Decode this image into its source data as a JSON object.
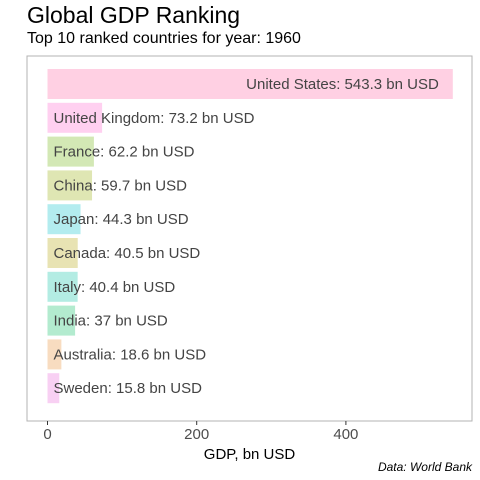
{
  "chart_data": {
    "type": "bar",
    "orientation": "horizontal",
    "title": "Global GDP Ranking",
    "subtitle": "Top 10 ranked countries for year: 1960",
    "caption": "Data: World Bank",
    "xlabel": "GDP, bn USD",
    "ylabel": "",
    "xlim": [
      0,
      560
    ],
    "xticks": [
      0,
      200,
      400
    ],
    "legend": "none",
    "grid": false,
    "bars": [
      {
        "country": "United States",
        "value": 543.3,
        "label": "United States: 543.3 bn USD",
        "color": "#ffd0e3"
      },
      {
        "country": "United Kingdom",
        "value": 73.2,
        "label": "United Kingdom: 73.2 bn USD",
        "color": "#ffd0f0"
      },
      {
        "country": "France",
        "value": 62.2,
        "label": "France: 62.2 bn USD",
        "color": "#d3e8b5"
      },
      {
        "country": "China",
        "value": 59.7,
        "label": "China: 59.7 bn USD",
        "color": "#dfe6b3"
      },
      {
        "country": "Japan",
        "value": 44.3,
        "label": "Japan: 44.3 bn USD",
        "color": "#b3ecef"
      },
      {
        "country": "Canada",
        "value": 40.5,
        "label": "Canada: 40.5 bn USD",
        "color": "#e8e3b3"
      },
      {
        "country": "Italy",
        "value": 40.4,
        "label": "Italy: 40.4 bn USD",
        "color": "#b3ece3"
      },
      {
        "country": "India",
        "value": 37,
        "label": "India: 37 bn USD",
        "color": "#b3ebcf"
      },
      {
        "country": "Australia",
        "value": 18.6,
        "label": "Australia: 18.6 bn USD",
        "color": "#f8dcc0"
      },
      {
        "country": "Sweden",
        "value": 15.8,
        "label": "Sweden: 15.8 bn USD",
        "color": "#f8d0f3"
      }
    ]
  }
}
